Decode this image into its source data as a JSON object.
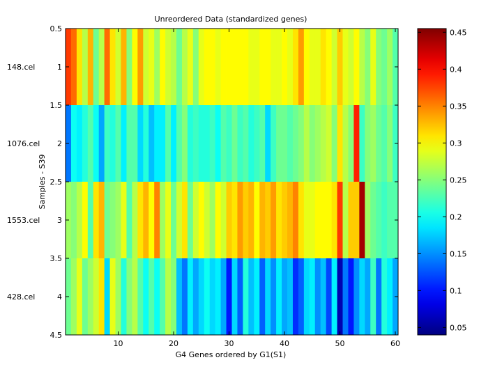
{
  "chart_data": {
    "type": "heatmap",
    "title": "Unreordered Data (standardized genes)",
    "xlabel": "G4 Genes ordered by G1(S1)",
    "ylabel": "Samples - S39",
    "xlim": [
      0.5,
      60.5
    ],
    "ylim": [
      0.5,
      4.5
    ],
    "x_ticks": [
      10,
      20,
      30,
      40,
      50,
      60
    ],
    "y_ticks": [
      0.5,
      1,
      1.5,
      2,
      2.5,
      3,
      3.5,
      4,
      4.5
    ],
    "row_labels": [
      "148.cel",
      "1076.cel",
      "1553.cel",
      "428.cel"
    ],
    "colorbar": {
      "min": 0.04,
      "max": 0.455,
      "ticks": [
        0.05,
        0.1,
        0.15,
        0.2,
        0.25,
        0.3,
        0.35,
        0.4,
        0.45
      ],
      "colormap": "jet"
    },
    "values": [
      [
        0.38,
        0.36,
        0.31,
        0.27,
        0.33,
        0.24,
        0.27,
        0.36,
        0.31,
        0.28,
        0.33,
        0.25,
        0.3,
        0.34,
        0.28,
        0.29,
        0.26,
        0.3,
        0.28,
        0.27,
        0.24,
        0.27,
        0.29,
        0.25,
        0.29,
        0.3,
        0.3,
        0.29,
        0.3,
        0.3,
        0.3,
        0.3,
        0.3,
        0.29,
        0.29,
        0.3,
        0.3,
        0.29,
        0.29,
        0.3,
        0.29,
        0.31,
        0.34,
        0.3,
        0.29,
        0.29,
        0.31,
        0.3,
        0.28,
        0.32,
        0.29,
        0.28,
        0.3,
        0.27,
        0.25,
        0.29,
        0.25,
        0.24,
        0.26,
        0.23
      ],
      [
        0.14,
        0.2,
        0.19,
        0.21,
        0.23,
        0.2,
        0.16,
        0.22,
        0.21,
        0.23,
        0.19,
        0.23,
        0.23,
        0.18,
        0.21,
        0.17,
        0.19,
        0.19,
        0.23,
        0.19,
        0.23,
        0.25,
        0.21,
        0.22,
        0.21,
        0.21,
        0.22,
        0.2,
        0.23,
        0.22,
        0.24,
        0.22,
        0.23,
        0.21,
        0.22,
        0.23,
        0.18,
        0.22,
        0.24,
        0.24,
        0.23,
        0.24,
        0.25,
        0.27,
        0.25,
        0.26,
        0.27,
        0.28,
        0.25,
        0.31,
        0.27,
        0.25,
        0.39,
        0.22,
        0.25,
        0.26,
        0.24,
        0.23,
        0.25,
        0.22
      ],
      [
        0.26,
        0.25,
        0.27,
        0.3,
        0.23,
        0.31,
        0.33,
        0.24,
        0.25,
        0.26,
        0.29,
        0.23,
        0.27,
        0.31,
        0.33,
        0.3,
        0.35,
        0.26,
        0.29,
        0.24,
        0.28,
        0.31,
        0.24,
        0.28,
        0.3,
        0.28,
        0.26,
        0.3,
        0.28,
        0.32,
        0.31,
        0.34,
        0.32,
        0.33,
        0.3,
        0.33,
        0.32,
        0.34,
        0.31,
        0.32,
        0.33,
        0.35,
        0.31,
        0.29,
        0.29,
        0.3,
        0.3,
        0.3,
        0.31,
        0.38,
        0.27,
        0.32,
        0.32,
        0.44,
        0.26,
        0.24,
        0.23,
        0.22,
        0.23,
        0.23
      ],
      [
        0.24,
        0.26,
        0.29,
        0.24,
        0.26,
        0.28,
        0.31,
        0.18,
        0.29,
        0.26,
        0.21,
        0.25,
        0.27,
        0.23,
        0.2,
        0.23,
        0.2,
        0.23,
        0.27,
        0.25,
        0.17,
        0.14,
        0.19,
        0.16,
        0.18,
        0.2,
        0.18,
        0.19,
        0.16,
        0.1,
        0.18,
        0.13,
        0.21,
        0.17,
        0.19,
        0.13,
        0.18,
        0.15,
        0.19,
        0.16,
        0.17,
        0.11,
        0.13,
        0.18,
        0.19,
        0.15,
        0.17,
        0.12,
        0.19,
        0.06,
        0.14,
        0.1,
        0.15,
        0.18,
        0.16,
        0.22,
        0.14,
        0.21,
        0.19,
        0.16
      ]
    ]
  }
}
